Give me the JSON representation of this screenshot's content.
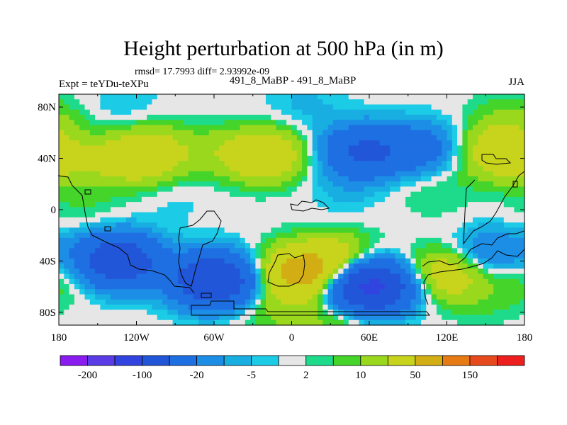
{
  "title": "Height perturbation at 500 hPa (in m)",
  "subtitle_rmsd": "rmsd= 17.7993 diff= 2.93992e-09",
  "left_label": "Expt = teYDu-teXPu",
  "center_label": "491_8_MaBP - 491_8_MaBP",
  "right_label": "JJA",
  "chart_data": {
    "type": "heatmap",
    "title": "Height perturbation at 500 hPa (in m)",
    "xlabel": "",
    "ylabel": "",
    "xlim": [
      -180,
      180
    ],
    "ylim": [
      -90,
      90
    ],
    "x_ticks": [
      {
        "value": -180,
        "label": "180"
      },
      {
        "value": -120,
        "label": "120W"
      },
      {
        "value": -60,
        "label": "60W"
      },
      {
        "value": 0,
        "label": "0"
      },
      {
        "value": 60,
        "label": "60E"
      },
      {
        "value": 120,
        "label": "120E"
      },
      {
        "value": 180,
        "label": "180"
      }
    ],
    "y_ticks": [
      {
        "value": 80,
        "label": "80N"
      },
      {
        "value": 40,
        "label": "40N"
      },
      {
        "value": 0,
        "label": "0"
      },
      {
        "value": -40,
        "label": "40S"
      },
      {
        "value": -80,
        "label": "80S"
      }
    ],
    "colorbar": {
      "levels": [
        -200,
        -150,
        -100,
        -50,
        -20,
        -10,
        -5,
        -2,
        2,
        5,
        10,
        20,
        50,
        100,
        150,
        200
      ],
      "labeled_levels": [
        {
          "value": -200,
          "label": "-200"
        },
        {
          "value": -100,
          "label": "-100"
        },
        {
          "value": -20,
          "label": "-20"
        },
        {
          "value": -5,
          "label": "-5"
        },
        {
          "value": 2,
          "label": "2"
        },
        {
          "value": 10,
          "label": "10"
        },
        {
          "value": 50,
          "label": "50"
        },
        {
          "value": 150,
          "label": "150"
        }
      ],
      "colors": [
        "#8a1cf0",
        "#5a3ce6",
        "#3244e0",
        "#2256d8",
        "#1e6fe2",
        "#1c8ee6",
        "#18aee2",
        "#1ccbe6",
        "#e6e6e6",
        "#1edb8c",
        "#44d42a",
        "#9ad81e",
        "#c8d41c",
        "#d2ae14",
        "#e67a14",
        "#e64a1c",
        "#ec1e1e"
      ]
    },
    "background_value": 0,
    "anomalies": [
      {
        "lon": -170,
        "lat": 35,
        "value": 12
      },
      {
        "lon": -120,
        "lat": 40,
        "value": 35
      },
      {
        "lon": -105,
        "lat": 48,
        "value": 12
      },
      {
        "lon": -60,
        "lat": 45,
        "value": 10
      },
      {
        "lon": -20,
        "lat": 42,
        "value": 40
      },
      {
        "lon": 55,
        "lat": 45,
        "value": -55
      },
      {
        "lon": 100,
        "lat": 48,
        "value": -30
      },
      {
        "lon": 160,
        "lat": 45,
        "value": 35
      },
      {
        "lon": 170,
        "lat": 70,
        "value": 10
      },
      {
        "lon": -130,
        "lat": 80,
        "value": -5
      },
      {
        "lon": 10,
        "lat": 82,
        "value": -6
      },
      {
        "lon": 40,
        "lat": 15,
        "value": -5
      },
      {
        "lon": 110,
        "lat": 15,
        "value": 6
      },
      {
        "lon": -90,
        "lat": 8,
        "value": -3
      },
      {
        "lon": -160,
        "lat": 0,
        "value": 5
      },
      {
        "lon": -135,
        "lat": -40,
        "value": -90
      },
      {
        "lon": -175,
        "lat": -48,
        "value": 15
      },
      {
        "lon": -60,
        "lat": -55,
        "value": -100
      },
      {
        "lon": 5,
        "lat": -50,
        "value": 60
      },
      {
        "lon": 35,
        "lat": -40,
        "value": 35
      },
      {
        "lon": 60,
        "lat": -60,
        "value": -120
      },
      {
        "lon": 120,
        "lat": -50,
        "value": 35
      },
      {
        "lon": 155,
        "lat": -35,
        "value": -25
      },
      {
        "lon": 150,
        "lat": -70,
        "value": 5
      },
      {
        "lon": -15,
        "lat": -80,
        "value": 10
      },
      {
        "lon": 40,
        "lat": -85,
        "value": 15
      }
    ]
  }
}
